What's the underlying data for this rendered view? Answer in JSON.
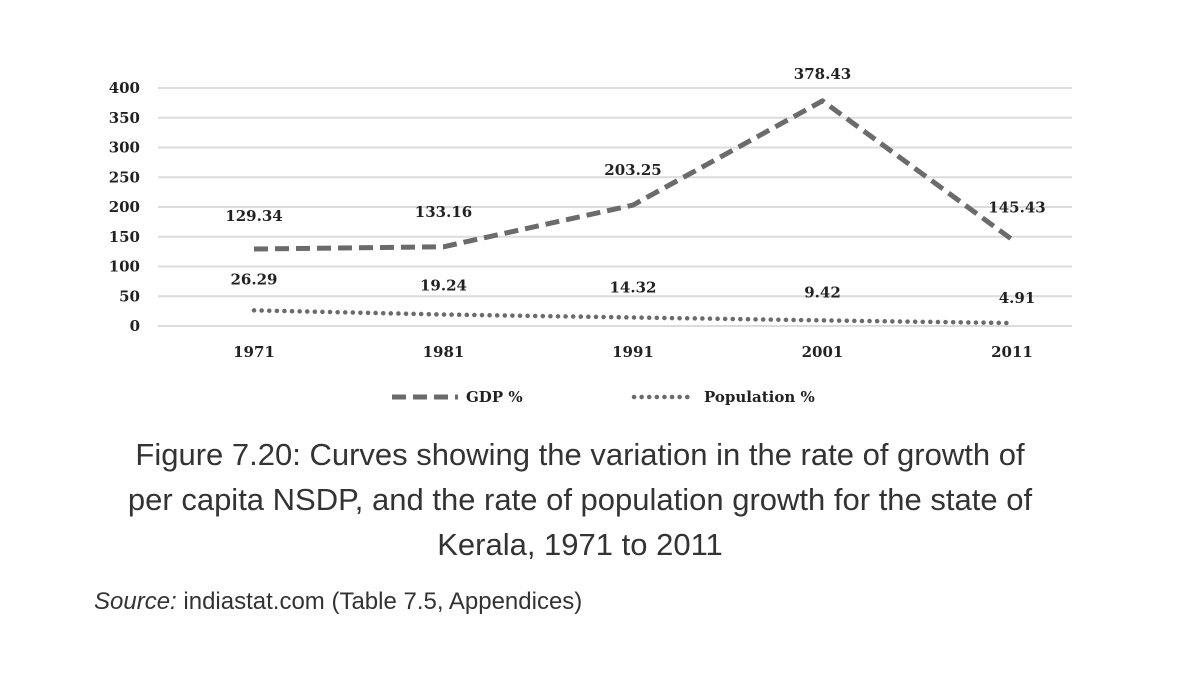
{
  "chart_data": {
    "type": "line",
    "categories": [
      "1971",
      "1981",
      "1991",
      "2001",
      "2011"
    ],
    "series": [
      {
        "name": "GDP %",
        "values": [
          129.34,
          133.16,
          203.25,
          378.43,
          145.43
        ],
        "style": "dashed",
        "color": "#6b6b6b"
      },
      {
        "name": "Population %",
        "values": [
          26.29,
          19.24,
          14.32,
          9.42,
          4.91
        ],
        "style": "dotted",
        "color": "#6b6b6b"
      }
    ],
    "data_labels": {
      "gdp": [
        "129.34",
        "133.16",
        "203.25",
        "378.43",
        "145.43"
      ],
      "population": [
        "26.29",
        "19.24",
        "14.32",
        "9.42",
        "4.91"
      ]
    },
    "yticks": [
      "0",
      "50",
      "100",
      "150",
      "200",
      "250",
      "300",
      "350",
      "400"
    ],
    "ylim": [
      0,
      400
    ],
    "grid": true,
    "legend": "bottom",
    "xlabel": "",
    "ylabel": "",
    "gridline_color": "#dcdcdc"
  },
  "caption": {
    "line1": "Figure 7.20: Curves showing the variation in the rate of growth of",
    "line2": "per capita NSDP, and the rate of population growth for the state of",
    "line3": "Kerala, 1971 to 2011"
  },
  "source": {
    "label": "Source:",
    "text": " indiastat.com (Table 7.5, Appendices)"
  }
}
